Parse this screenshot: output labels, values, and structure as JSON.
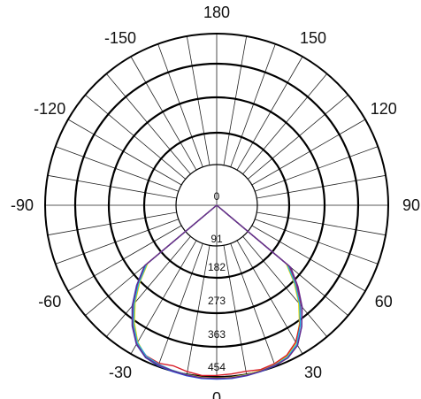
{
  "chart_data": {
    "type": "polar-line",
    "angle_labels": [
      "0",
      "30",
      "60",
      "90",
      "120",
      "150",
      "180",
      "-150",
      "-120",
      "-90",
      "-60",
      "-30"
    ],
    "angle_values_deg": [
      0,
      30,
      60,
      90,
      120,
      150,
      180,
      -150,
      -120,
      -90,
      -60,
      -30
    ],
    "radial_tick_labels": [
      "0",
      "91",
      "182",
      "273",
      "363",
      "454"
    ],
    "radial_max": 454,
    "spoke_step_deg": 10,
    "grid": true,
    "series": [
      {
        "color": "#1f4fd8",
        "theta": [
          -50,
          -45,
          -40,
          -35,
          -30,
          -25,
          -20,
          -15,
          -10,
          -5,
          0,
          5,
          10,
          15,
          20,
          25,
          30,
          35,
          40,
          45,
          50
        ],
        "r": [
          250,
          300,
          348,
          390,
          425,
          445,
          452,
          455,
          458,
          460,
          460,
          460,
          458,
          455,
          452,
          445,
          428,
          392,
          350,
          302,
          252
        ]
      },
      {
        "color": "#e8d400",
        "theta": [
          -50,
          -45,
          -40,
          -35,
          -30,
          -25,
          -20,
          -15,
          -10,
          -5,
          0,
          5,
          10,
          15,
          20,
          25,
          30,
          35,
          40,
          45,
          50
        ],
        "r": [
          238,
          288,
          336,
          380,
          418,
          442,
          450,
          452,
          455,
          457,
          457,
          457,
          455,
          452,
          448,
          440,
          420,
          382,
          338,
          290,
          240
        ]
      },
      {
        "color": "#d81e2a",
        "theta": [
          -50,
          -45,
          -40,
          -35,
          -30,
          -25,
          -20,
          -15,
          -10,
          -5,
          0,
          5,
          10,
          15,
          20,
          25,
          30,
          35,
          40,
          45,
          50
        ],
        "r": [
          245,
          296,
          345,
          388,
          422,
          440,
          445,
          440,
          447,
          452,
          450,
          448,
          446,
          450,
          446,
          438,
          418,
          384,
          344,
          297,
          247
        ]
      },
      {
        "color": "#1fb3e6",
        "theta": [
          -50,
          -45,
          -40,
          -35,
          -30,
          -25,
          -20,
          -15,
          -10,
          -5,
          0,
          5,
          10,
          15,
          20,
          25,
          30,
          35,
          40,
          45,
          50
        ],
        "r": [
          242,
          292,
          340,
          384,
          420,
          441,
          448,
          452,
          455,
          458,
          458,
          458,
          456,
          454,
          450,
          443,
          424,
          386,
          342,
          294,
          244
        ]
      },
      {
        "color": "#6a2a8a",
        "theta": [
          -50,
          -45,
          -40,
          -35,
          -30,
          -25,
          -20,
          -15,
          -10,
          -5,
          0,
          5,
          10,
          15,
          20,
          25,
          30,
          35,
          40,
          45,
          50
        ],
        "r": [
          248,
          298,
          346,
          389,
          424,
          444,
          450,
          453,
          456,
          458,
          458,
          458,
          457,
          454,
          451,
          446,
          428,
          392,
          352,
          304,
          256
        ]
      }
    ]
  }
}
